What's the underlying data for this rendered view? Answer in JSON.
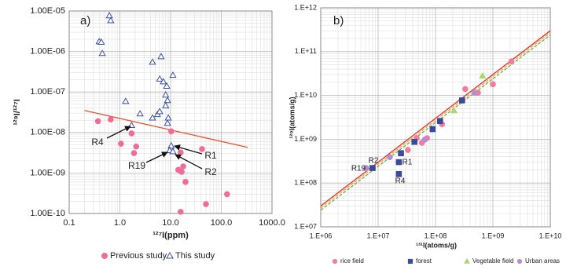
{
  "chart_data": [
    {
      "type": "scatter",
      "panel_label": "a)",
      "xlabel": "¹²⁷I(ppm)",
      "ylabel": "¹²⁹I/¹²⁷I",
      "log_x": true,
      "log_y": true,
      "grid": true,
      "legend": "bottom",
      "xlim": [
        0.1,
        1000
      ],
      "ylim": [
        1e-10,
        1e-05
      ],
      "xticks": [
        0.1,
        {
          "value": 1,
          "label": "1.0"
        },
        {
          "value": 10,
          "label": "10.0"
        },
        {
          "value": 100,
          "label": "100.0"
        },
        {
          "value": 1000,
          "label": "1000.0"
        }
      ],
      "yticks": [
        {
          "value": 1e-10,
          "label": "1.00E-10"
        },
        {
          "value": 1e-09,
          "label": "1.00E-09"
        },
        {
          "value": 1e-08,
          "label": "1.00E-08"
        },
        {
          "value": 1e-07,
          "label": "1.00E-07"
        },
        {
          "value": 1e-06,
          "label": "1.00E-06"
        },
        {
          "value": 1e-05,
          "label": "1.00E-05"
        }
      ],
      "series": [
        {
          "name": "Previous study",
          "color": "#ee6c9a",
          "marker": "circle",
          "filled": true,
          "x": [
            0.37,
            0.66,
            1.7,
            1.05,
            2.1,
            1.9,
            10.3,
            15.8,
            41.7,
            17.7,
            14.2,
            16.5,
            19.7,
            49.8,
            130,
            15.8
          ],
          "values": [
            1.9e-08,
            2.1e-08,
            9.5e-09,
            5.3e-09,
            4.5e-09,
            3.1e-09,
            1.07e-08,
            3.2e-09,
            3.9e-09,
            1.45e-09,
            1.2e-09,
            1.07e-09,
            6e-10,
            1.7e-10,
            3e-10,
            1.1e-10
          ]
        },
        {
          "name": "This study",
          "color": "#3a4fa0",
          "marker": "triangle",
          "filled": false,
          "x": [
            0.62,
            0.66,
            0.39,
            0.43,
            0.45,
            4.4,
            6.5,
            6.1,
            7.2,
            11.1,
            8.4,
            8.0,
            8.7,
            8.0,
            1.3,
            2.5,
            5.5,
            6.1,
            4.4,
            9.0,
            8.7,
            1.7,
            10.3,
            9.6,
            11.1
          ],
          "values": [
            7.7e-06,
            5.8e-06,
            1.75e-06,
            1.7e-06,
            9e-07,
            5.5e-07,
            7.5e-07,
            2.1e-07,
            1.8e-07,
            2.6e-07,
            1.4e-07,
            8.5e-08,
            6.2e-08,
            4.6e-08,
            5.9e-08,
            2.9e-08,
            2.8e-08,
            3.3e-08,
            2.3e-08,
            2.3e-08,
            1.7e-08,
            1.5e-08,
            4.7e-09,
            3.6e-09,
            3.4e-09
          ]
        }
      ],
      "lines": [
        {
          "color": "#e8502a",
          "style": "solid",
          "x": [
            0.2,
            330
          ],
          "values": [
            3.5e-08,
            4.3e-09
          ]
        }
      ],
      "annotations": [
        "R4",
        "R19",
        "R1",
        "R2"
      ]
    },
    {
      "type": "scatter",
      "panel_label": "b)",
      "xlabel": "¹³¹I(atoms/g)",
      "ylabel": "¹²⁹I(atoms/g)",
      "log_x": true,
      "log_y": true,
      "grid": true,
      "legend": "bottom",
      "xlim": [
        1000000.0,
        10000000000.0
      ],
      "ylim": [
        10000000.0,
        1000000000000.0
      ],
      "xticks": [
        {
          "value": 1000000.0,
          "label": "1.E+06"
        },
        {
          "value": 10000000.0,
          "label": "1.E+07"
        },
        {
          "value": 100000000.0,
          "label": "1.E+08"
        },
        {
          "value": 1000000000.0,
          "label": "1.E+09"
        },
        {
          "value": 10000000000.0,
          "label": "1.E+10"
        }
      ],
      "yticks": [
        {
          "value": 10000000.0,
          "label": "1.E+07"
        },
        {
          "value": 100000000.0,
          "label": "1.E+08"
        },
        {
          "value": 1000000000.0,
          "label": "1.E+09"
        },
        {
          "value": 10000000000.0,
          "label": "1.E+10"
        },
        {
          "value": 100000000000.0,
          "label": "1.E+11"
        },
        {
          "value": 1000000000000.0,
          "label": "1.E+12"
        }
      ],
      "series": [
        {
          "name": "rice field",
          "color": "#f27ca0",
          "marker": "circle",
          "filled": true,
          "x": [
            33000000.0,
            47000000.0,
            58000000.0,
            71000000.0,
            130000000.0,
            330000000.0,
            550000000.0,
            1000000000.0,
            2100000000.0
          ],
          "values": [
            570000000.0,
            1060000000.0,
            830000000.0,
            1060000000.0,
            2200000000.0,
            14000000000.0,
            11500000000.0,
            18000000000.0,
            60000000000.0
          ]
        },
        {
          "name": "forest",
          "color": "#3a4b9c",
          "marker": "square",
          "filled": true,
          "x": [
            8000000.0,
            23000000.0,
            23000000.0,
            25000000.0,
            43000000.0,
            89000000.0,
            120000000.0,
            290000000.0
          ],
          "values": [
            220000000.0,
            300000000.0,
            160000000.0,
            480000000.0,
            870000000.0,
            1700000000.0,
            2600000000.0,
            7700000000.0
          ]
        },
        {
          "name": "Vegetable field",
          "color": "#a8d86e",
          "marker": "triangle",
          "filled": true,
          "x": [
            210000000.0,
            660000000.0
          ],
          "values": [
            4500000000.0,
            28000000000.0
          ]
        },
        {
          "name": "Urban areas",
          "color": "#b48ed0",
          "marker": "circle",
          "filled": true,
          "x": [
            6200000.0,
            16000000.0,
            65000000.0,
            480000000.0
          ],
          "values": [
            220000000.0,
            390000000.0,
            980000000.0,
            11500000000.0
          ]
        }
      ],
      "lines": [
        {
          "color": "#e0302a",
          "style": "solid",
          "x": [
            1000000.0,
            10000000000.0
          ],
          "values": [
            30000000.0,
            300000000000.0
          ]
        },
        {
          "color": "#f2a03a",
          "style": "dashed",
          "x": [
            1000000.0,
            10000000000.0
          ],
          "values": [
            27000000.0,
            270000000000.0
          ]
        },
        {
          "color": "#6ab04c",
          "style": "dashed",
          "x": [
            1000000.0,
            10000000000.0
          ],
          "values": [
            24000000.0,
            240000000000.0
          ]
        }
      ],
      "annotations": [
        "R2",
        "R19",
        "R1",
        "R4"
      ]
    }
  ]
}
